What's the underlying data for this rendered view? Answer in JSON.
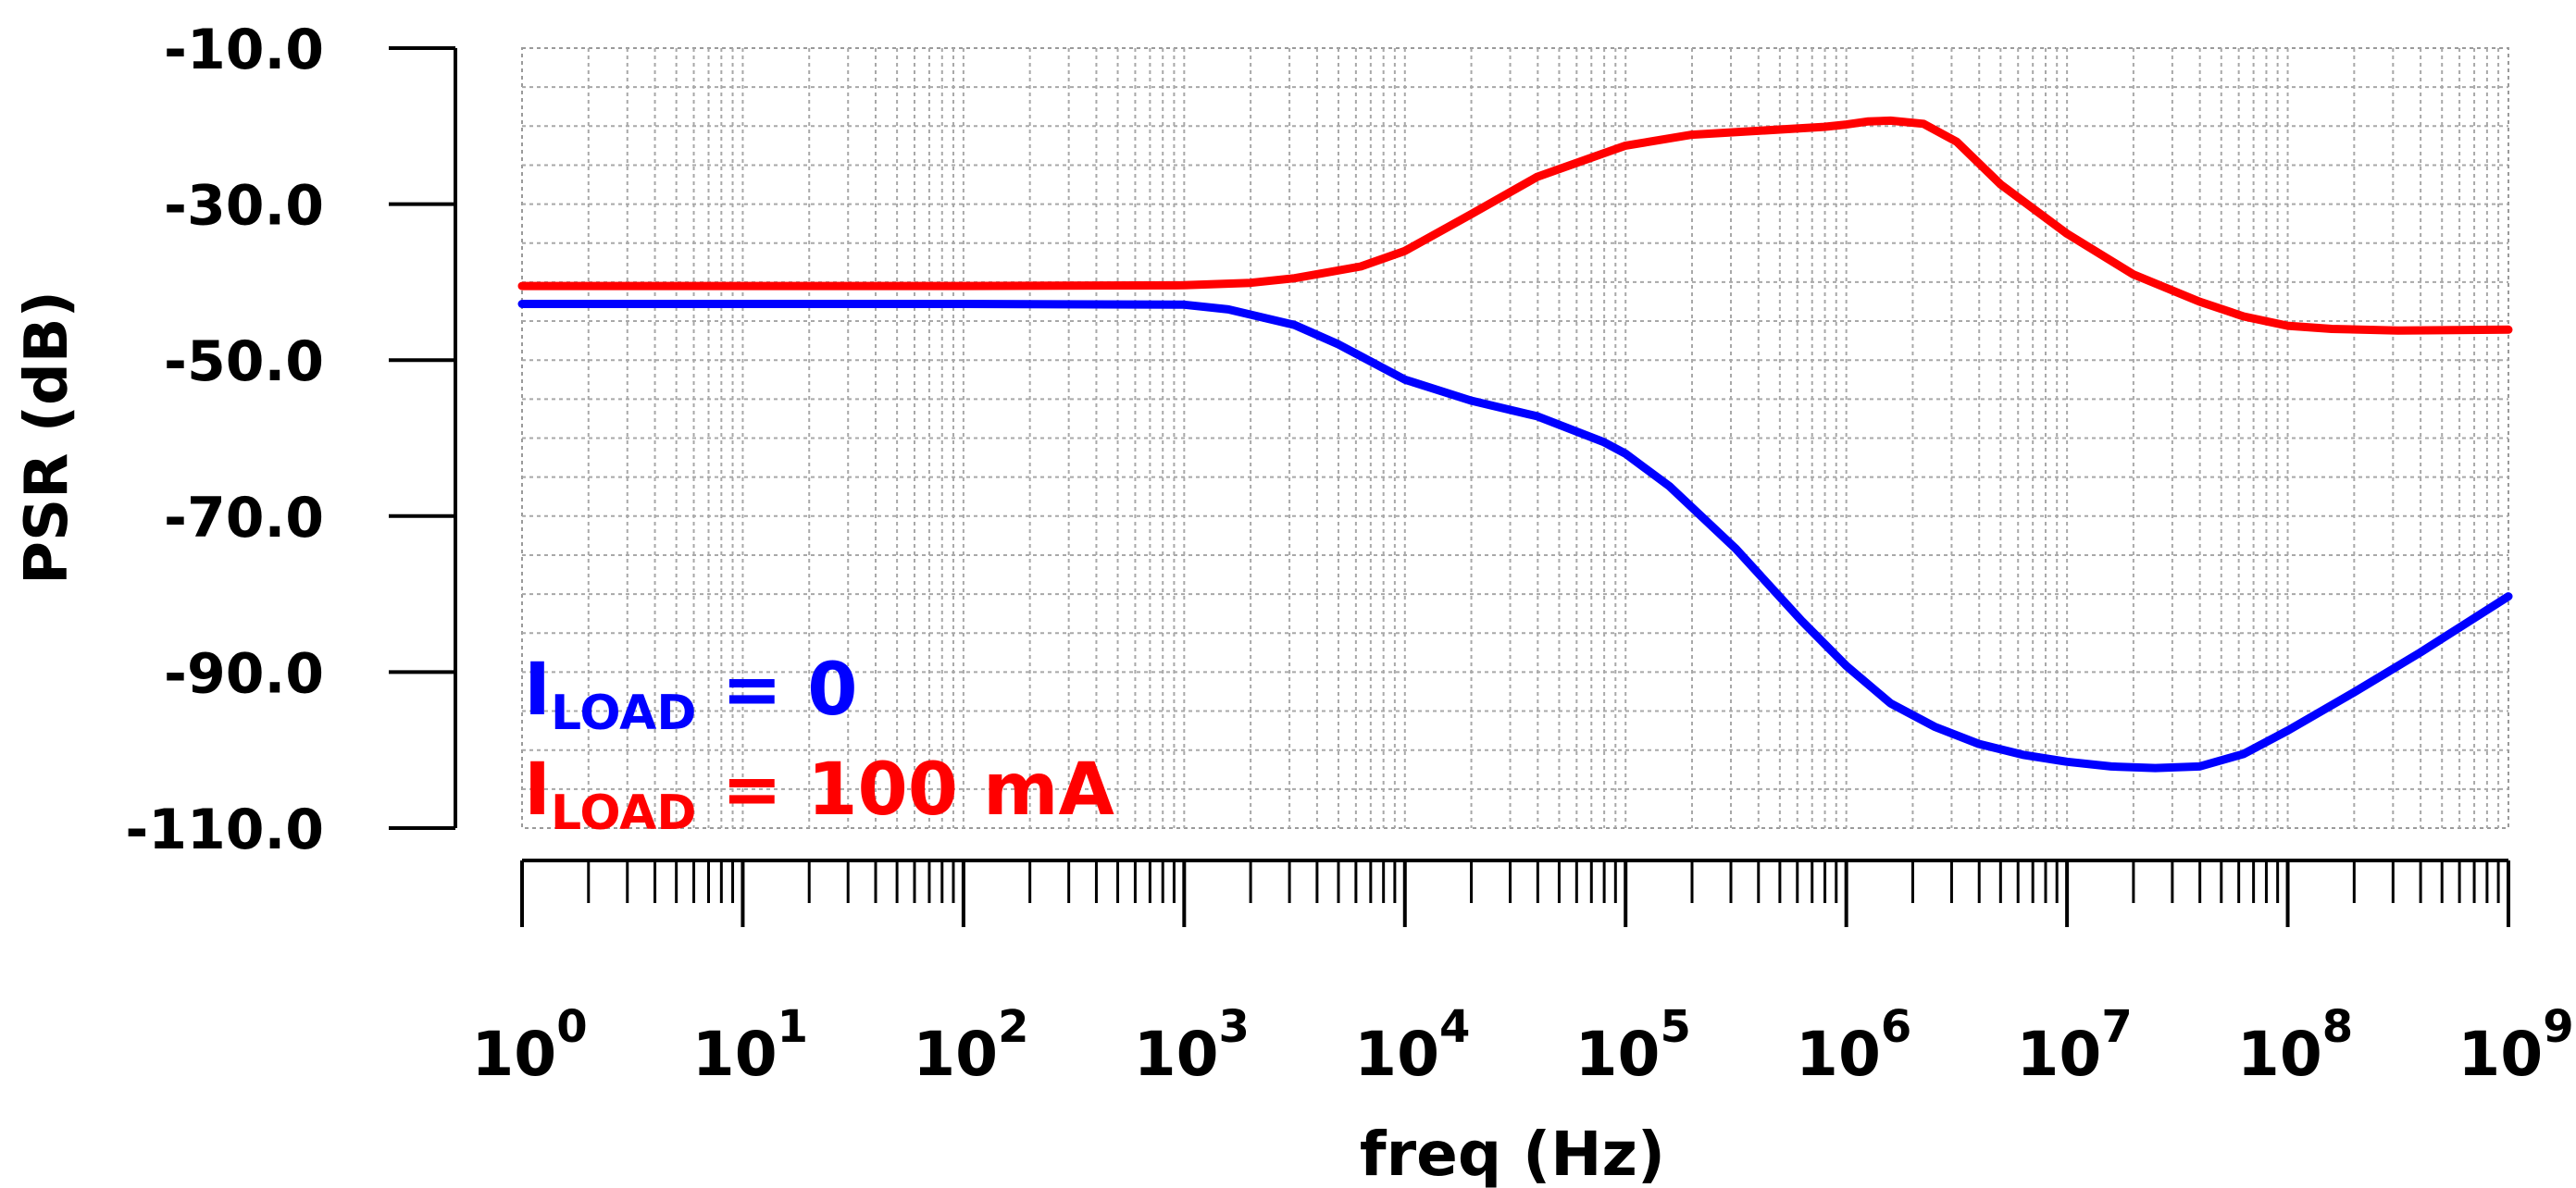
{
  "chart_data": {
    "type": "line",
    "xscale": "log",
    "xlabel": "freq (Hz)",
    "ylabel": "PSR (dB)",
    "xlim": [
      1,
      1000000000
    ],
    "ylim": [
      -110,
      -10
    ],
    "yticks": [
      {
        "value": -10,
        "label": "-10.0"
      },
      {
        "value": -30,
        "label": "-30.0"
      },
      {
        "value": -50,
        "label": "-50.0"
      },
      {
        "value": -70,
        "label": "-70.0"
      },
      {
        "value": -90,
        "label": "-90.0"
      },
      {
        "value": -110,
        "label": "-110.0"
      }
    ],
    "xticks": [
      {
        "exp": 0,
        "base": "10",
        "sup": "0"
      },
      {
        "exp": 1,
        "base": "10",
        "sup": "1"
      },
      {
        "exp": 2,
        "base": "10",
        "sup": "2"
      },
      {
        "exp": 3,
        "base": "10",
        "sup": "3"
      },
      {
        "exp": 4,
        "base": "10",
        "sup": "4"
      },
      {
        "exp": 5,
        "base": "10",
        "sup": "5"
      },
      {
        "exp": 6,
        "base": "10",
        "sup": "6"
      },
      {
        "exp": 7,
        "base": "10",
        "sup": "7"
      },
      {
        "exp": 8,
        "base": "10",
        "sup": "8"
      },
      {
        "exp": 9,
        "base": "10",
        "sup": "9"
      }
    ],
    "grid": true,
    "series": [
      {
        "name": "ILOAD = 0",
        "legend_main": "I",
        "legend_sub": "LOAD",
        "legend_value": " = 0",
        "color": "#0000ff",
        "log10_x": [
          0,
          1,
          2,
          3,
          3.2,
          3.5,
          3.7,
          4,
          4.3,
          4.6,
          4.9,
          5,
          5.2,
          5.5,
          5.8,
          6,
          6.2,
          6.4,
          6.6,
          6.8,
          7,
          7.2,
          7.4,
          7.6,
          7.8,
          8,
          8.3,
          8.6,
          9
        ],
        "y": [
          -42.8,
          -42.8,
          -42.8,
          -42.9,
          -43.5,
          -45.5,
          -48,
          -52.5,
          -55.2,
          -57.2,
          -60.5,
          -62,
          -66.2,
          -74.2,
          -83.5,
          -89.2,
          -94,
          -97,
          -99.2,
          -100.6,
          -101.5,
          -102.1,
          -102.3,
          -102.1,
          -100.5,
          -97.5,
          -92.6,
          -87.5,
          -80.3
        ]
      },
      {
        "name": "ILOAD = 100 mA",
        "legend_main": "I",
        "legend_sub": "LOAD",
        "legend_value": " = 100 mA",
        "color": "#ff0000",
        "log10_x": [
          0,
          1,
          2,
          3,
          3.3,
          3.5,
          3.8,
          4,
          4.3,
          4.6,
          4.9,
          5,
          5.3,
          5.6,
          5.9,
          6,
          6.1,
          6.2,
          6.35,
          6.5,
          6.7,
          7,
          7.3,
          7.6,
          7.8,
          8,
          8.2,
          8.5,
          9
        ],
        "y": [
          -40.5,
          -40.5,
          -40.5,
          -40.4,
          -40.1,
          -39.5,
          -38,
          -36,
          -31.3,
          -26.5,
          -23.5,
          -22.5,
          -21.1,
          -20.6,
          -20.1,
          -19.8,
          -19.4,
          -19.3,
          -19.7,
          -22,
          -27.5,
          -33.8,
          -39,
          -42.5,
          -44.4,
          -45.6,
          -46,
          -46.2,
          -46.1
        ]
      }
    ]
  }
}
